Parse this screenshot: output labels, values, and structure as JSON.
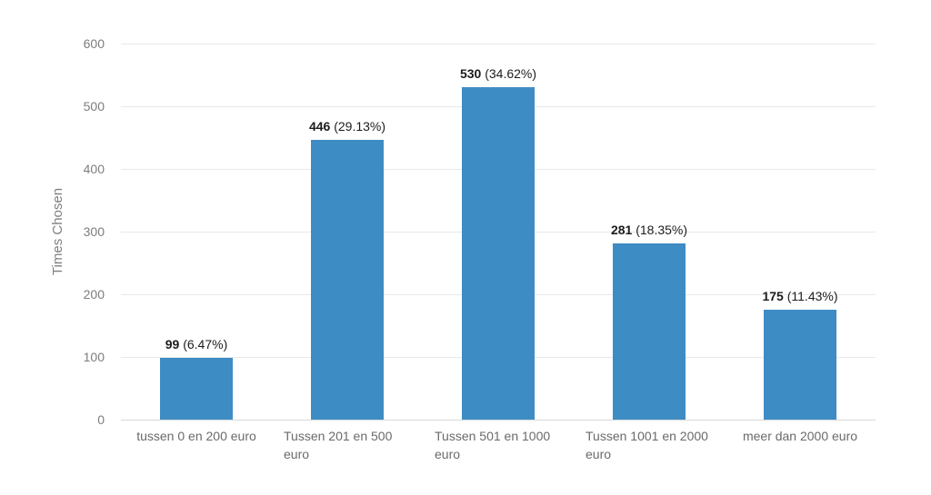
{
  "chart_data": {
    "type": "bar",
    "title": "",
    "xlabel": "",
    "ylabel": "Times Chosen",
    "ylim": [
      0,
      600
    ],
    "yticks": [
      0,
      100,
      200,
      300,
      400,
      500,
      600
    ],
    "grid": true,
    "legend_position": "none",
    "bar_color": "#3e8cc4",
    "categories": [
      "tussen 0 en 200 euro",
      "Tussen 201 en 500 euro",
      "Tussen 501 en 1000 euro",
      "Tussen 1001 en 2000 euro",
      "meer dan 2000 euro"
    ],
    "values": [
      99,
      446,
      530,
      281,
      175
    ],
    "percents": [
      6.47,
      29.13,
      34.62,
      18.35,
      11.43
    ],
    "value_label_format": "value (percent%)"
  }
}
